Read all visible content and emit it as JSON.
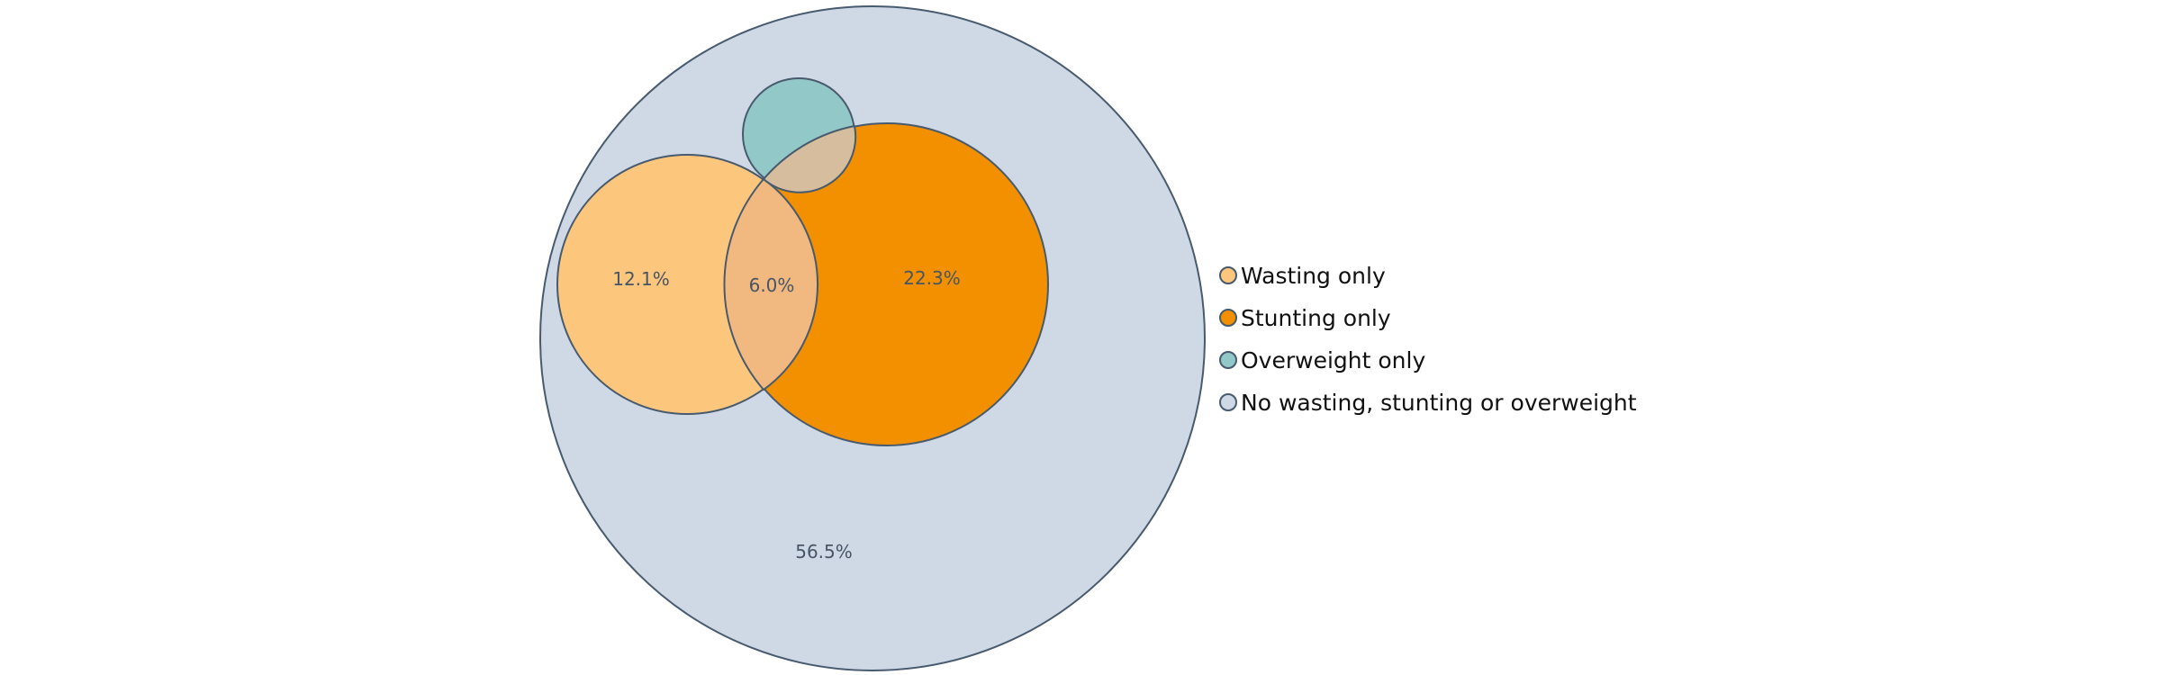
{
  "chart_data": {
    "type": "venn",
    "title": "",
    "sets": [
      {
        "key": "population",
        "legend": "No wasting, stunting or overweight",
        "color": "#cfd8e5"
      },
      {
        "key": "wasting",
        "legend": "Wasting only",
        "color": "#fcc77c"
      },
      {
        "key": "stunting",
        "legend": "Stunting only",
        "color": "#f29000"
      },
      {
        "key": "overweight",
        "legend": "Overweight only",
        "color": "#92c8c7"
      }
    ],
    "region_labels": [
      {
        "region": "wasting-only",
        "label": "12.1%"
      },
      {
        "region": "wasting-and-stunting",
        "label": "6.0%"
      },
      {
        "region": "stunting-only",
        "label": "22.3%"
      },
      {
        "region": "none",
        "label": "56.5%"
      }
    ],
    "legend_placement": "right",
    "outline_color": "#475a6e"
  }
}
